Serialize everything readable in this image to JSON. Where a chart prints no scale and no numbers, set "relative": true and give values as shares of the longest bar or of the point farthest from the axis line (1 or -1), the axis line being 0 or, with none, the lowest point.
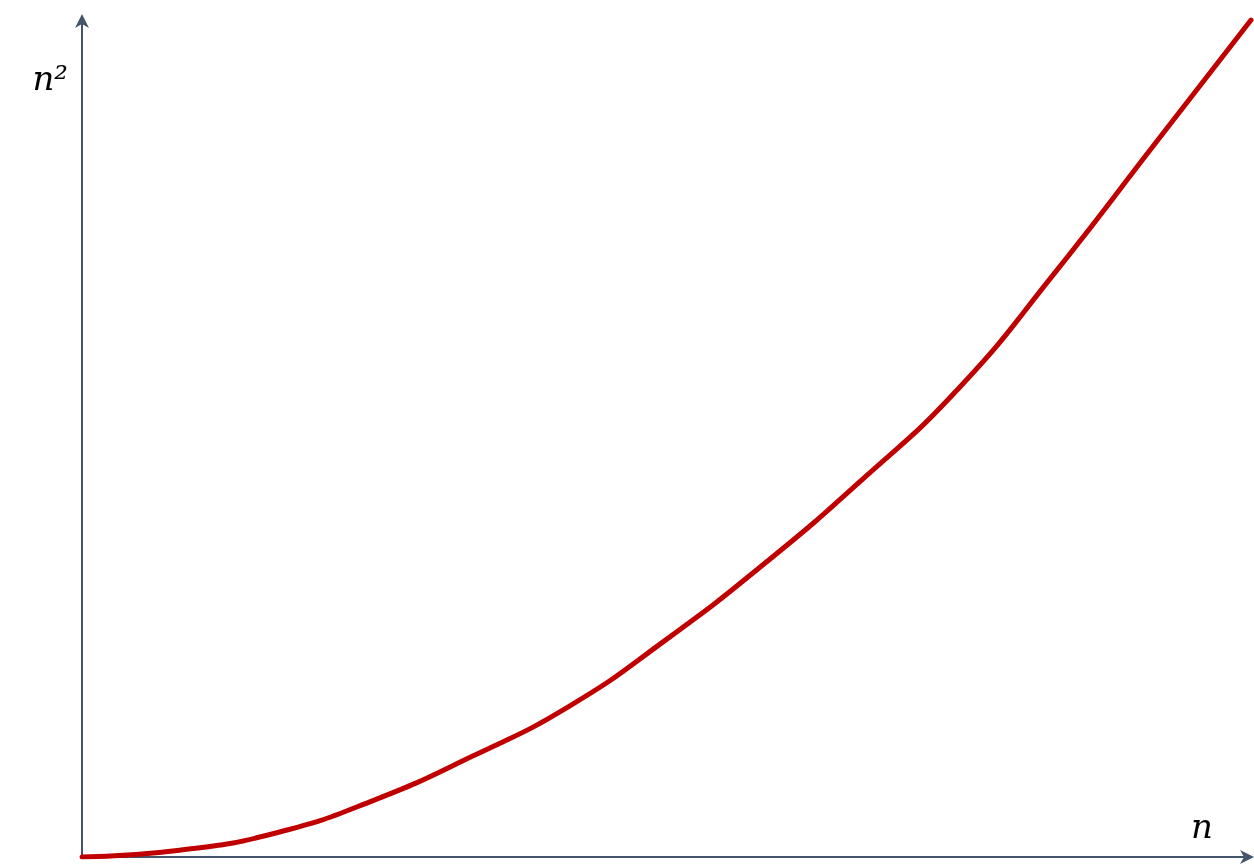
{
  "chart_data": {
    "type": "line",
    "relative": true,
    "xlabel": "n",
    "ylabel": "n²",
    "categories": [
      null,
      null,
      null,
      null,
      null,
      null,
      null,
      null,
      null,
      null,
      null,
      null,
      null
    ],
    "series": [
      {
        "color": "#c00000",
        "values": [
          0,
          0.008,
          0.029,
          0.068,
          0.12,
          0.18,
          0.26,
          0.35,
          0.45,
          0.56,
          0.7,
          0.85,
          1
        ]
      }
    ],
    "marker": "none",
    "line_style": "solid",
    "grid": false
  }
}
